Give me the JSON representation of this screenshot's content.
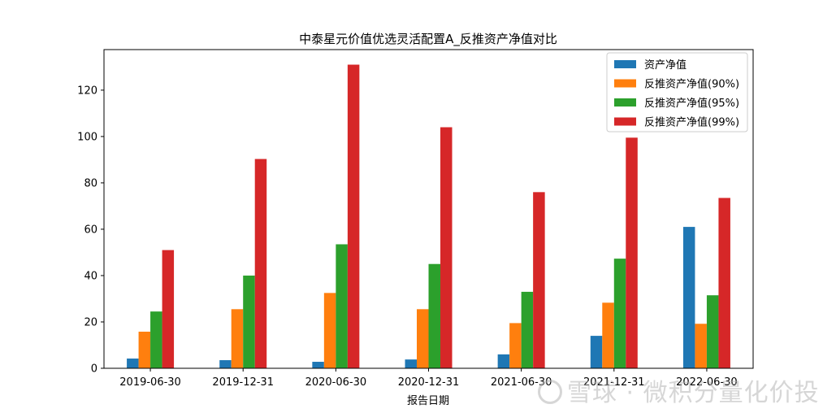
{
  "chart_data": {
    "type": "bar",
    "title": "中泰星元价值优选灵活配置A_反推资产净值对比",
    "xlabel": "报告日期",
    "ylabel": "",
    "categories": [
      "2019-06-30",
      "2019-12-31",
      "2020-06-30",
      "2020-12-31",
      "2021-06-30",
      "2021-12-31",
      "2022-06-30"
    ],
    "ylim": [
      0,
      137.5
    ],
    "yticks": [
      0,
      20,
      40,
      60,
      80,
      100,
      120
    ],
    "legend_position": "top-right",
    "grid": false,
    "series": [
      {
        "name": "资产净值",
        "color": "#1f77b4",
        "values": [
          4.2,
          3.5,
          2.8,
          3.8,
          6.0,
          14.0,
          61.0
        ]
      },
      {
        "name": "反推资产净值(90%)",
        "color": "#ff7f0e",
        "values": [
          15.8,
          25.5,
          32.5,
          25.5,
          19.5,
          28.3,
          19.2
        ]
      },
      {
        "name": "反推资产净值(95%)",
        "color": "#2ca02c",
        "values": [
          24.5,
          40.0,
          53.5,
          45.0,
          33.0,
          47.3,
          31.5
        ]
      },
      {
        "name": "反推资产净值(99%)",
        "color": "#d62728",
        "values": [
          51.0,
          90.3,
          131.0,
          104.0,
          76.0,
          99.5,
          73.5
        ]
      }
    ]
  },
  "watermark": {
    "text": "雪球 · 微积分量化价投"
  }
}
